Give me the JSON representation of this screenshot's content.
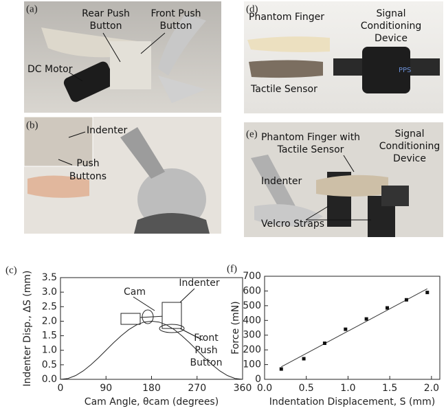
{
  "panels": [
    {
      "label": "(a)",
      "annotations": [
        [
          "Rear Push",
          "Button"
        ],
        [
          "Front Push",
          "Button"
        ],
        [
          "DC Motor"
        ]
      ]
    },
    {
      "label": "(b)",
      "annotations": [
        [
          "Indenter"
        ],
        [
          "Push",
          "Buttons"
        ]
      ]
    },
    {
      "label": "(d)",
      "annotations": [
        [
          "Phantom Finger"
        ],
        [
          "Signal",
          "Conditioning",
          "Device"
        ],
        [
          "Tactile Sensor"
        ],
        [
          "PPS"
        ]
      ]
    },
    {
      "label": "(e)",
      "annotations": [
        [
          "Phantom Finger with",
          "Tactile Sensor"
        ],
        [
          "Signal",
          "Conditioning",
          "Device"
        ],
        [
          "Indenter"
        ],
        [
          "Velcro Straps"
        ]
      ]
    }
  ],
  "chart_data": [
    {
      "type": "line",
      "panel_label": "(c)",
      "x_label": "Cam Angle, θcam (degrees)",
      "y_label": "Indenter Disp., ΔS (mm)",
      "annotations": [
        "Cam",
        "Indenter",
        "Front",
        "Push",
        "Button"
      ],
      "x": [
        0,
        15,
        30,
        45,
        60,
        75,
        90,
        105,
        120,
        135,
        150,
        165,
        180,
        195,
        210,
        225,
        240,
        255,
        270,
        285,
        300,
        315,
        330,
        345,
        360
      ],
      "values": [
        0,
        0.03,
        0.13,
        0.29,
        0.5,
        0.74,
        1.0,
        1.26,
        1.5,
        1.71,
        1.87,
        1.97,
        2.0,
        1.97,
        1.87,
        1.71,
        1.5,
        1.26,
        1.0,
        0.74,
        0.5,
        0.29,
        0.13,
        0.03,
        0
      ],
      "color": "#222222",
      "xlim": [
        0,
        360
      ],
      "xticks": [
        0,
        90,
        180,
        270,
        360
      ],
      "ylim": [
        0,
        3.5
      ],
      "yticks": [
        {
          "value": 0,
          "label": "0.0"
        },
        {
          "value": 0.5,
          "label": "0.5"
        },
        {
          "value": 1,
          "label": "1.0"
        },
        {
          "value": 1.5,
          "label": "1.5"
        },
        {
          "value": 2,
          "label": "2.0"
        },
        {
          "value": 2.5,
          "label": "2.5"
        },
        {
          "value": 3,
          "label": "3.0"
        },
        {
          "value": 3.5,
          "label": "3.5"
        }
      ]
    },
    {
      "type": "scatter",
      "panel_label": "(f)",
      "x_label": "Indentation Displacement, S (mm)",
      "y_label": "Force (mN)",
      "x": [
        0.2,
        0.47,
        0.72,
        0.97,
        1.22,
        1.47,
        1.7,
        1.95
      ],
      "values": [
        70,
        140,
        245,
        340,
        410,
        485,
        540,
        590
      ],
      "color": "#111111",
      "fit": {
        "x": [
          0.2,
          1.95
        ],
        "values": [
          85,
          615
        ]
      },
      "xlim": [
        0,
        2.1
      ],
      "xticks": [
        {
          "value": 0,
          "label": "0.0"
        },
        {
          "value": 0.5,
          "label": "0.5"
        },
        {
          "value": 1,
          "label": "1.0"
        },
        {
          "value": 1.5,
          "label": "1.5"
        },
        {
          "value": 2,
          "label": "2.0"
        }
      ],
      "ylim": [
        0,
        700
      ],
      "yticks": [
        0,
        100,
        200,
        300,
        400,
        500,
        600,
        700
      ]
    }
  ]
}
